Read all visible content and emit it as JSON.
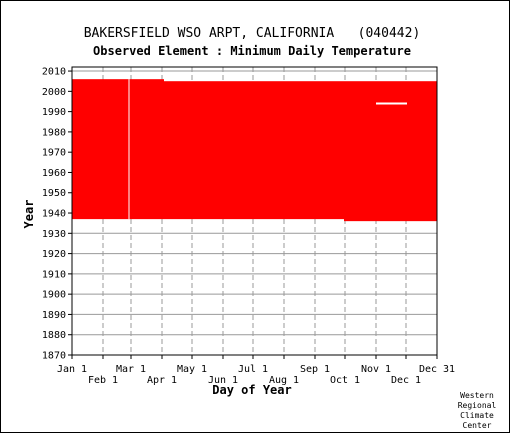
{
  "chart_data": {
    "type": "area",
    "title": "BAKERSFIELD WSO ARPT, CALIFORNIA   (040442)",
    "subtitle": "Observed Element : Minimum Daily Temperature",
    "xlabel": "Day of Year",
    "ylabel": "Year",
    "credit": [
      "Western",
      "Regional",
      "Climate",
      "Center"
    ],
    "xlim": [
      1,
      366
    ],
    "ylim": [
      1870,
      2012
    ],
    "yticks": [
      1870,
      1880,
      1890,
      1900,
      1910,
      1920,
      1930,
      1940,
      1950,
      1960,
      1970,
      1980,
      1990,
      2000,
      2010
    ],
    "xticks_top": [
      {
        "label": "Jan 1",
        "day": 1
      },
      {
        "label": "Mar 1",
        "day": 60
      },
      {
        "label": "May 1",
        "day": 121
      },
      {
        "label": "Jul 1",
        "day": 182
      },
      {
        "label": "Sep 1",
        "day": 244
      },
      {
        "label": "Nov 1",
        "day": 305
      },
      {
        "label": "Dec 31",
        "day": 366
      }
    ],
    "xticks_bottom": [
      {
        "label": "Feb 1",
        "day": 32
      },
      {
        "label": "Apr 1",
        "day": 91
      },
      {
        "label": "Jun 1",
        "day": 152
      },
      {
        "label": "Aug 1",
        "day": 213
      },
      {
        "label": "Oct 1",
        "day": 274
      },
      {
        "label": "Dec 1",
        "day": 335
      }
    ],
    "grid": true,
    "data_color": "#ff0000",
    "coverage": [
      {
        "start_day": 1,
        "end_day": 58,
        "first_year": 1937,
        "last_year": 2006
      },
      {
        "start_day": 58,
        "end_day": 93,
        "first_year": 1937,
        "last_year": 2006
      },
      {
        "start_day": 93,
        "end_day": 273,
        "first_year": 1937,
        "last_year": 2005
      },
      {
        "start_day": 273,
        "end_day": 305,
        "first_year": 1936,
        "last_year": 2005
      },
      {
        "start_day": 305,
        "end_day": 366,
        "first_year": 1936,
        "last_year": 2005
      }
    ],
    "gaps": [
      {
        "start_day": 305,
        "end_day": 336,
        "year": 1994
      }
    ]
  }
}
